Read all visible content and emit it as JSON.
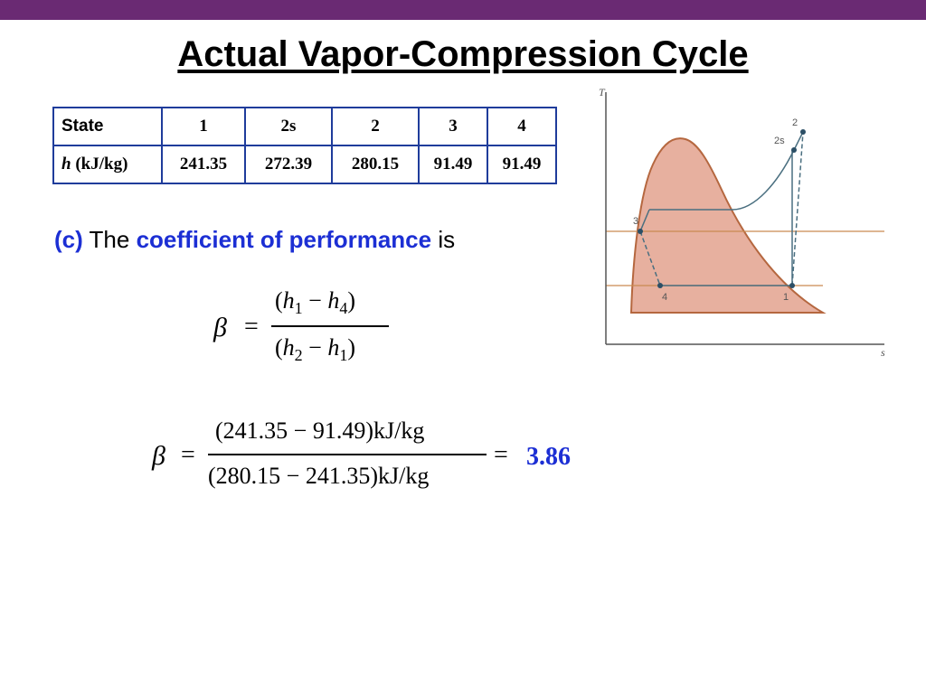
{
  "title": "Actual Vapor-Compression Cycle",
  "table": {
    "header_label": "State",
    "states": [
      "1",
      "2s",
      "2",
      "3",
      "4"
    ],
    "row_label_var": "h",
    "row_label_unit": "(kJ/kg)",
    "values": [
      "241.35",
      "272.39",
      "280.15",
      "91.49",
      "91.49"
    ]
  },
  "cop_text": {
    "part": "(c)",
    "the": "The",
    "term": "coefficient of performance",
    "is": "is"
  },
  "formula": {
    "beta": "β",
    "equals": "=",
    "num_open": "(",
    "num_h1": "h",
    "num_h1_sub": "1",
    "minus": "−",
    "num_h4": "h",
    "num_h4_sub": "4",
    "num_close": ")",
    "den_open": "(",
    "den_h2": "h",
    "den_h2_sub": "2",
    "den_h1": "h",
    "den_h1_sub": "1",
    "den_close": ")"
  },
  "calculation": {
    "beta": "β",
    "equals": "=",
    "numerator": "(241.35 − 91.49)kJ/kg",
    "denominator": "(280.15 − 241.35)kJ/kg",
    "equals2": "=",
    "result": "3.86"
  },
  "diagram": {
    "axis_t": "T",
    "axis_s": "s",
    "labels": {
      "p1": "1",
      "p2": "2",
      "p2s": "2s",
      "p3": "3",
      "p4": "4"
    },
    "colors": {
      "dome_fill": "#e7b09f",
      "dome_stroke": "#b5673f",
      "cycle": "#4a6f80",
      "isobar": "#c98a52"
    }
  }
}
